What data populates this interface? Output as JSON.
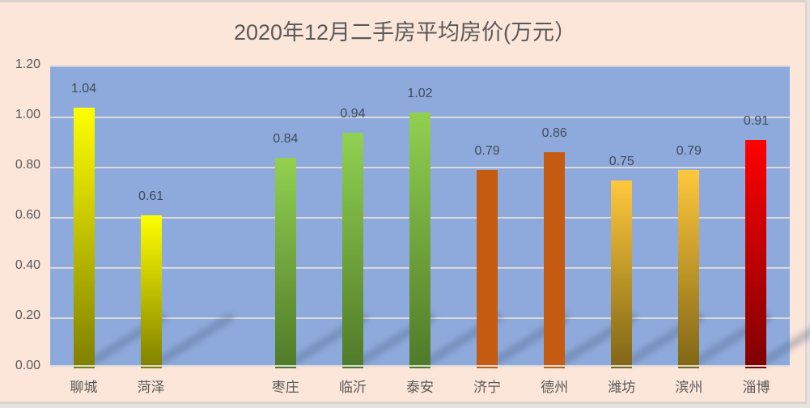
{
  "chart_data": {
    "type": "bar",
    "title": "2020年12月二手房平均房价(万元）",
    "xlabel": "",
    "ylabel": "",
    "ylim": [
      0,
      1.2
    ],
    "yticks": [
      "0.00",
      "0.20",
      "0.40",
      "0.60",
      "0.80",
      "1.00",
      "1.20"
    ],
    "grid": true,
    "legend": "none",
    "categories": [
      "聊城",
      "菏泽",
      "",
      "枣庄",
      "临沂",
      "泰安",
      "济宁",
      "德州",
      "潍坊",
      "滨州",
      "淄博"
    ],
    "values": [
      1.04,
      0.61,
      null,
      0.84,
      0.94,
      1.02,
      0.79,
      0.86,
      0.75,
      0.79,
      0.91
    ],
    "data_labels": [
      "1.04",
      "0.61",
      "",
      "0.84",
      "0.94",
      "1.02",
      "0.79",
      "0.86",
      "0.75",
      "0.79",
      "0.91"
    ],
    "bar_colors": {
      "聊城": [
        "#ffff00",
        "#7f7f00"
      ],
      "菏泽": [
        "#ffff00",
        "#7f7f00"
      ],
      "枣庄": [
        "#92d050",
        "#4f7a28"
      ],
      "临沂": [
        "#92d050",
        "#4f7a28"
      ],
      "泰安": [
        "#92d050",
        "#4f7a28"
      ],
      "济宁": [
        "#c55a11",
        "#c55a11"
      ],
      "德州": [
        "#c55a11",
        "#c55a11"
      ],
      "潍坊": [
        "#ffc83d",
        "#7f6515"
      ],
      "滨州": [
        "#ffc83d",
        "#7f6515"
      ],
      "淄博": [
        "#ff0000",
        "#7f0000"
      ]
    },
    "plot_background": "#8eaadc",
    "chart_background": "#fce6da"
  }
}
